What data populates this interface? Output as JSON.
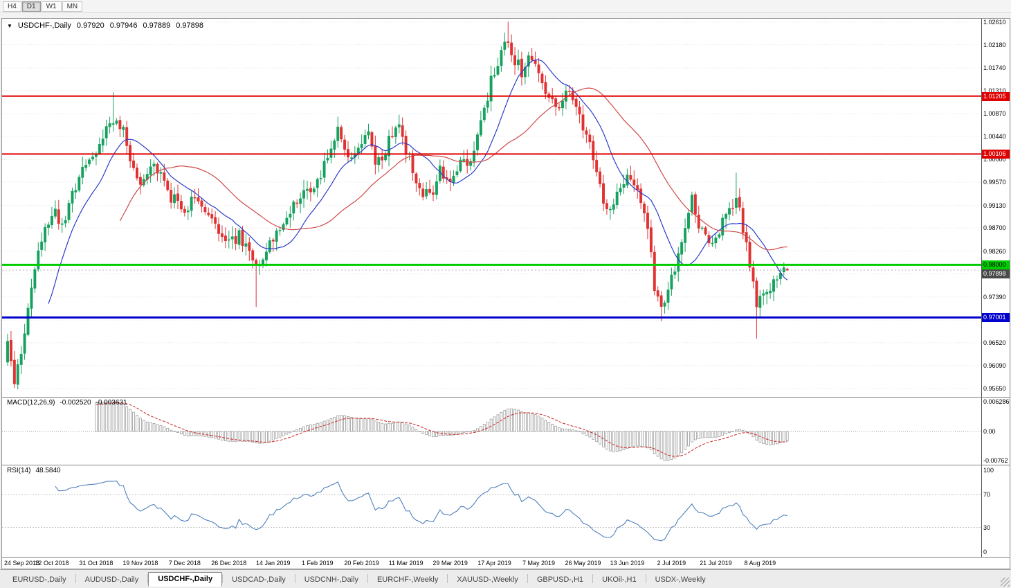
{
  "toolbar": {
    "timeframes": [
      "H4",
      "D1",
      "W1",
      "MN"
    ],
    "active": "D1"
  },
  "header": {
    "collapse_icon": "▼",
    "symbol": "USDCHF-,Daily",
    "open": "0.97920",
    "high": "0.97946",
    "low": "0.97889",
    "close": "0.97898"
  },
  "chart_data": {
    "type": "candlestick",
    "symbol": "USDCHF",
    "period": "Daily",
    "quote": {
      "open": 0.9792,
      "high": 0.97946,
      "low": 0.97889,
      "close": 0.97898
    },
    "y_scale": {
      "min": 0.9565,
      "max": 1.0261
    },
    "y_ticks": [
      "1.02610",
      "1.02180",
      "1.01740",
      "1.01310",
      "1.00870",
      "1.00440",
      "1.00000",
      "0.99570",
      "0.99130",
      "0.98700",
      "0.98260",
      "0.97830",
      "0.97390",
      "0.96950",
      "0.96520",
      "0.96090",
      "0.95650"
    ],
    "bar_count": 230,
    "noise": 0.0026,
    "candle_up": "#17a15f",
    "candle_down": "#e03232",
    "price_path": [
      [
        0,
        0.9655
      ],
      [
        2,
        0.9585
      ],
      [
        4,
        0.964
      ],
      [
        7,
        0.9745
      ],
      [
        10,
        0.985
      ],
      [
        13,
        0.9905
      ],
      [
        16,
        0.987
      ],
      [
        19,
        0.9935
      ],
      [
        22,
        0.9985
      ],
      [
        25,
        1.0005
      ],
      [
        28,
        1.004
      ],
      [
        31,
        1.0075
      ],
      [
        34,
        1.0065
      ],
      [
        36,
        1.001
      ],
      [
        39,
        0.9955
      ],
      [
        42,
        0.999
      ],
      [
        45,
        0.9965
      ],
      [
        48,
        0.993
      ],
      [
        52,
        0.99
      ],
      [
        55,
        0.9925
      ],
      [
        58,
        0.9895
      ],
      [
        61,
        0.987
      ],
      [
        65,
        0.9835
      ],
      [
        68,
        0.986
      ],
      [
        71,
        0.9815
      ],
      [
        73,
        0.979
      ],
      [
        75,
        0.982
      ],
      [
        78,
        0.9845
      ],
      [
        81,
        0.9885
      ],
      [
        84,
        0.9915
      ],
      [
        88,
        0.9945
      ],
      [
        91,
        0.9955
      ],
      [
        94,
        1.001
      ],
      [
        97,
        1.005
      ],
      [
        100,
        1.0005
      ],
      [
        103,
        1.003
      ],
      [
        106,
        1.0045
      ],
      [
        108,
        0.9995
      ],
      [
        110,
        1.001
      ],
      [
        113,
        1.0045
      ],
      [
        115,
        1.006
      ],
      [
        118,
        1.0
      ],
      [
        121,
        0.9945
      ],
      [
        124,
        0.9925
      ],
      [
        127,
        0.9975
      ],
      [
        130,
        0.996
      ],
      [
        133,
        0.999
      ],
      [
        136,
        1.0005
      ],
      [
        139,
        1.007
      ],
      [
        142,
        1.015
      ],
      [
        145,
        1.0205
      ],
      [
        147,
        1.023
      ],
      [
        149,
        1.019
      ],
      [
        151,
        1.0165
      ],
      [
        154,
        1.02
      ],
      [
        156,
        1.017
      ],
      [
        159,
        1.012
      ],
      [
        162,
        1.0095
      ],
      [
        164,
        1.0135
      ],
      [
        167,
        1.009
      ],
      [
        170,
        1.0055
      ],
      [
        173,
        0.9975
      ],
      [
        176,
        0.9905
      ],
      [
        179,
        0.9935
      ],
      [
        182,
        0.9965
      ],
      [
        185,
        0.993
      ],
      [
        188,
        0.987
      ],
      [
        190,
        0.976
      ],
      [
        192,
        0.9715
      ],
      [
        194,
        0.9755
      ],
      [
        196,
        0.98
      ],
      [
        199,
        0.987
      ],
      [
        201,
        0.9925
      ],
      [
        203,
        0.988
      ],
      [
        206,
        0.984
      ],
      [
        208,
        0.9855
      ],
      [
        211,
        0.99
      ],
      [
        214,
        0.993
      ],
      [
        216,
        0.987
      ],
      [
        218,
        0.98
      ],
      [
        220,
        0.973
      ],
      [
        222,
        0.9745
      ],
      [
        225,
        0.976
      ],
      [
        229,
        0.97898
      ]
    ],
    "spikes": [
      {
        "i": 2,
        "l": 0.9566
      },
      {
        "i": 31,
        "h": 1.0128
      },
      {
        "i": 73,
        "l": 0.972
      },
      {
        "i": 115,
        "h": 1.0085
      },
      {
        "i": 147,
        "h": 1.0262
      },
      {
        "i": 192,
        "l": 0.9693
      },
      {
        "i": 214,
        "h": 0.9975
      },
      {
        "i": 220,
        "l": 0.966
      }
    ],
    "ma": [
      {
        "period": 13,
        "color": "#2b3cc8"
      },
      {
        "period": 34,
        "color": "#d04848"
      }
    ],
    "hlines": [
      {
        "value": 1.01205,
        "label": "1.01205",
        "color": "#e00000",
        "width": 2,
        "text": "#ffffff"
      },
      {
        "value": 1.00106,
        "label": "1.00106",
        "color": "#e00000",
        "width": 2,
        "text": "#ffffff"
      },
      {
        "value": 0.98,
        "label": "0.98000",
        "color": "#00cc00",
        "width": 3,
        "text": "#000000"
      },
      {
        "value": 0.97001,
        "label": "0.97001",
        "color": "#0000cc",
        "width": 3,
        "text": "#ffffff"
      }
    ],
    "current": {
      "value": 0.97898,
      "label": "0.97898",
      "bg": "#4a4a4a",
      "text": "#ffffff"
    },
    "x_labels": [
      {
        "i": 0,
        "label": "24 Sep 2018"
      },
      {
        "i": 13,
        "label": "12 Oct 2018"
      },
      {
        "i": 26,
        "label": "31 Oct 2018"
      },
      {
        "i": 39,
        "label": "19 Nov 2018"
      },
      {
        "i": 52,
        "label": "7 Dec 2018"
      },
      {
        "i": 65,
        "label": "26 Dec 2018"
      },
      {
        "i": 78,
        "label": "14 Jan 2019"
      },
      {
        "i": 91,
        "label": "1 Feb 2019"
      },
      {
        "i": 104,
        "label": "20 Feb 2019"
      },
      {
        "i": 117,
        "label": "11 Mar 2019"
      },
      {
        "i": 130,
        "label": "29 Mar 2019"
      },
      {
        "i": 143,
        "label": "17 Apr 2019"
      },
      {
        "i": 156,
        "label": "7 May 2019"
      },
      {
        "i": 169,
        "label": "26 May 2019"
      },
      {
        "i": 182,
        "label": "13 Jun 2019"
      },
      {
        "i": 195,
        "label": "2 Jul 2019"
      },
      {
        "i": 208,
        "label": "21 Jul 2019"
      },
      {
        "i": 221,
        "label": "8 Aug 2019"
      }
    ],
    "macd": {
      "label": "MACD(12,26,9)",
      "value1": "-0.002520",
      "value2": "-0.003631",
      "fast": 12,
      "slow": 26,
      "signal_period": 9,
      "axis_labels": [
        "0.006286",
        "0.00",
        "-0.00762"
      ],
      "signal_color": "#cc2020",
      "hist_color": "#9c9c9c"
    },
    "rsi": {
      "label": "RSI(14)",
      "value_text": "48.5840",
      "period": 14,
      "color": "#4f81bd",
      "levels": [
        70,
        30
      ],
      "axis_labels": [
        "100",
        "70",
        "30",
        "0"
      ],
      "range": [
        0,
        100
      ]
    }
  },
  "tabs": {
    "items": [
      "EURUSD-,Daily",
      "AUDUSD-,Daily",
      "USDCHF-,Daily",
      "USDCAD-,Daily",
      "USDCNH-,Daily",
      "EURCHF-,Weekly",
      "XAUUSD-,Weekly",
      "GBPUSD-,H1",
      "UKOil-,H1",
      "USDX-,Weekly"
    ],
    "active_index": 2
  }
}
